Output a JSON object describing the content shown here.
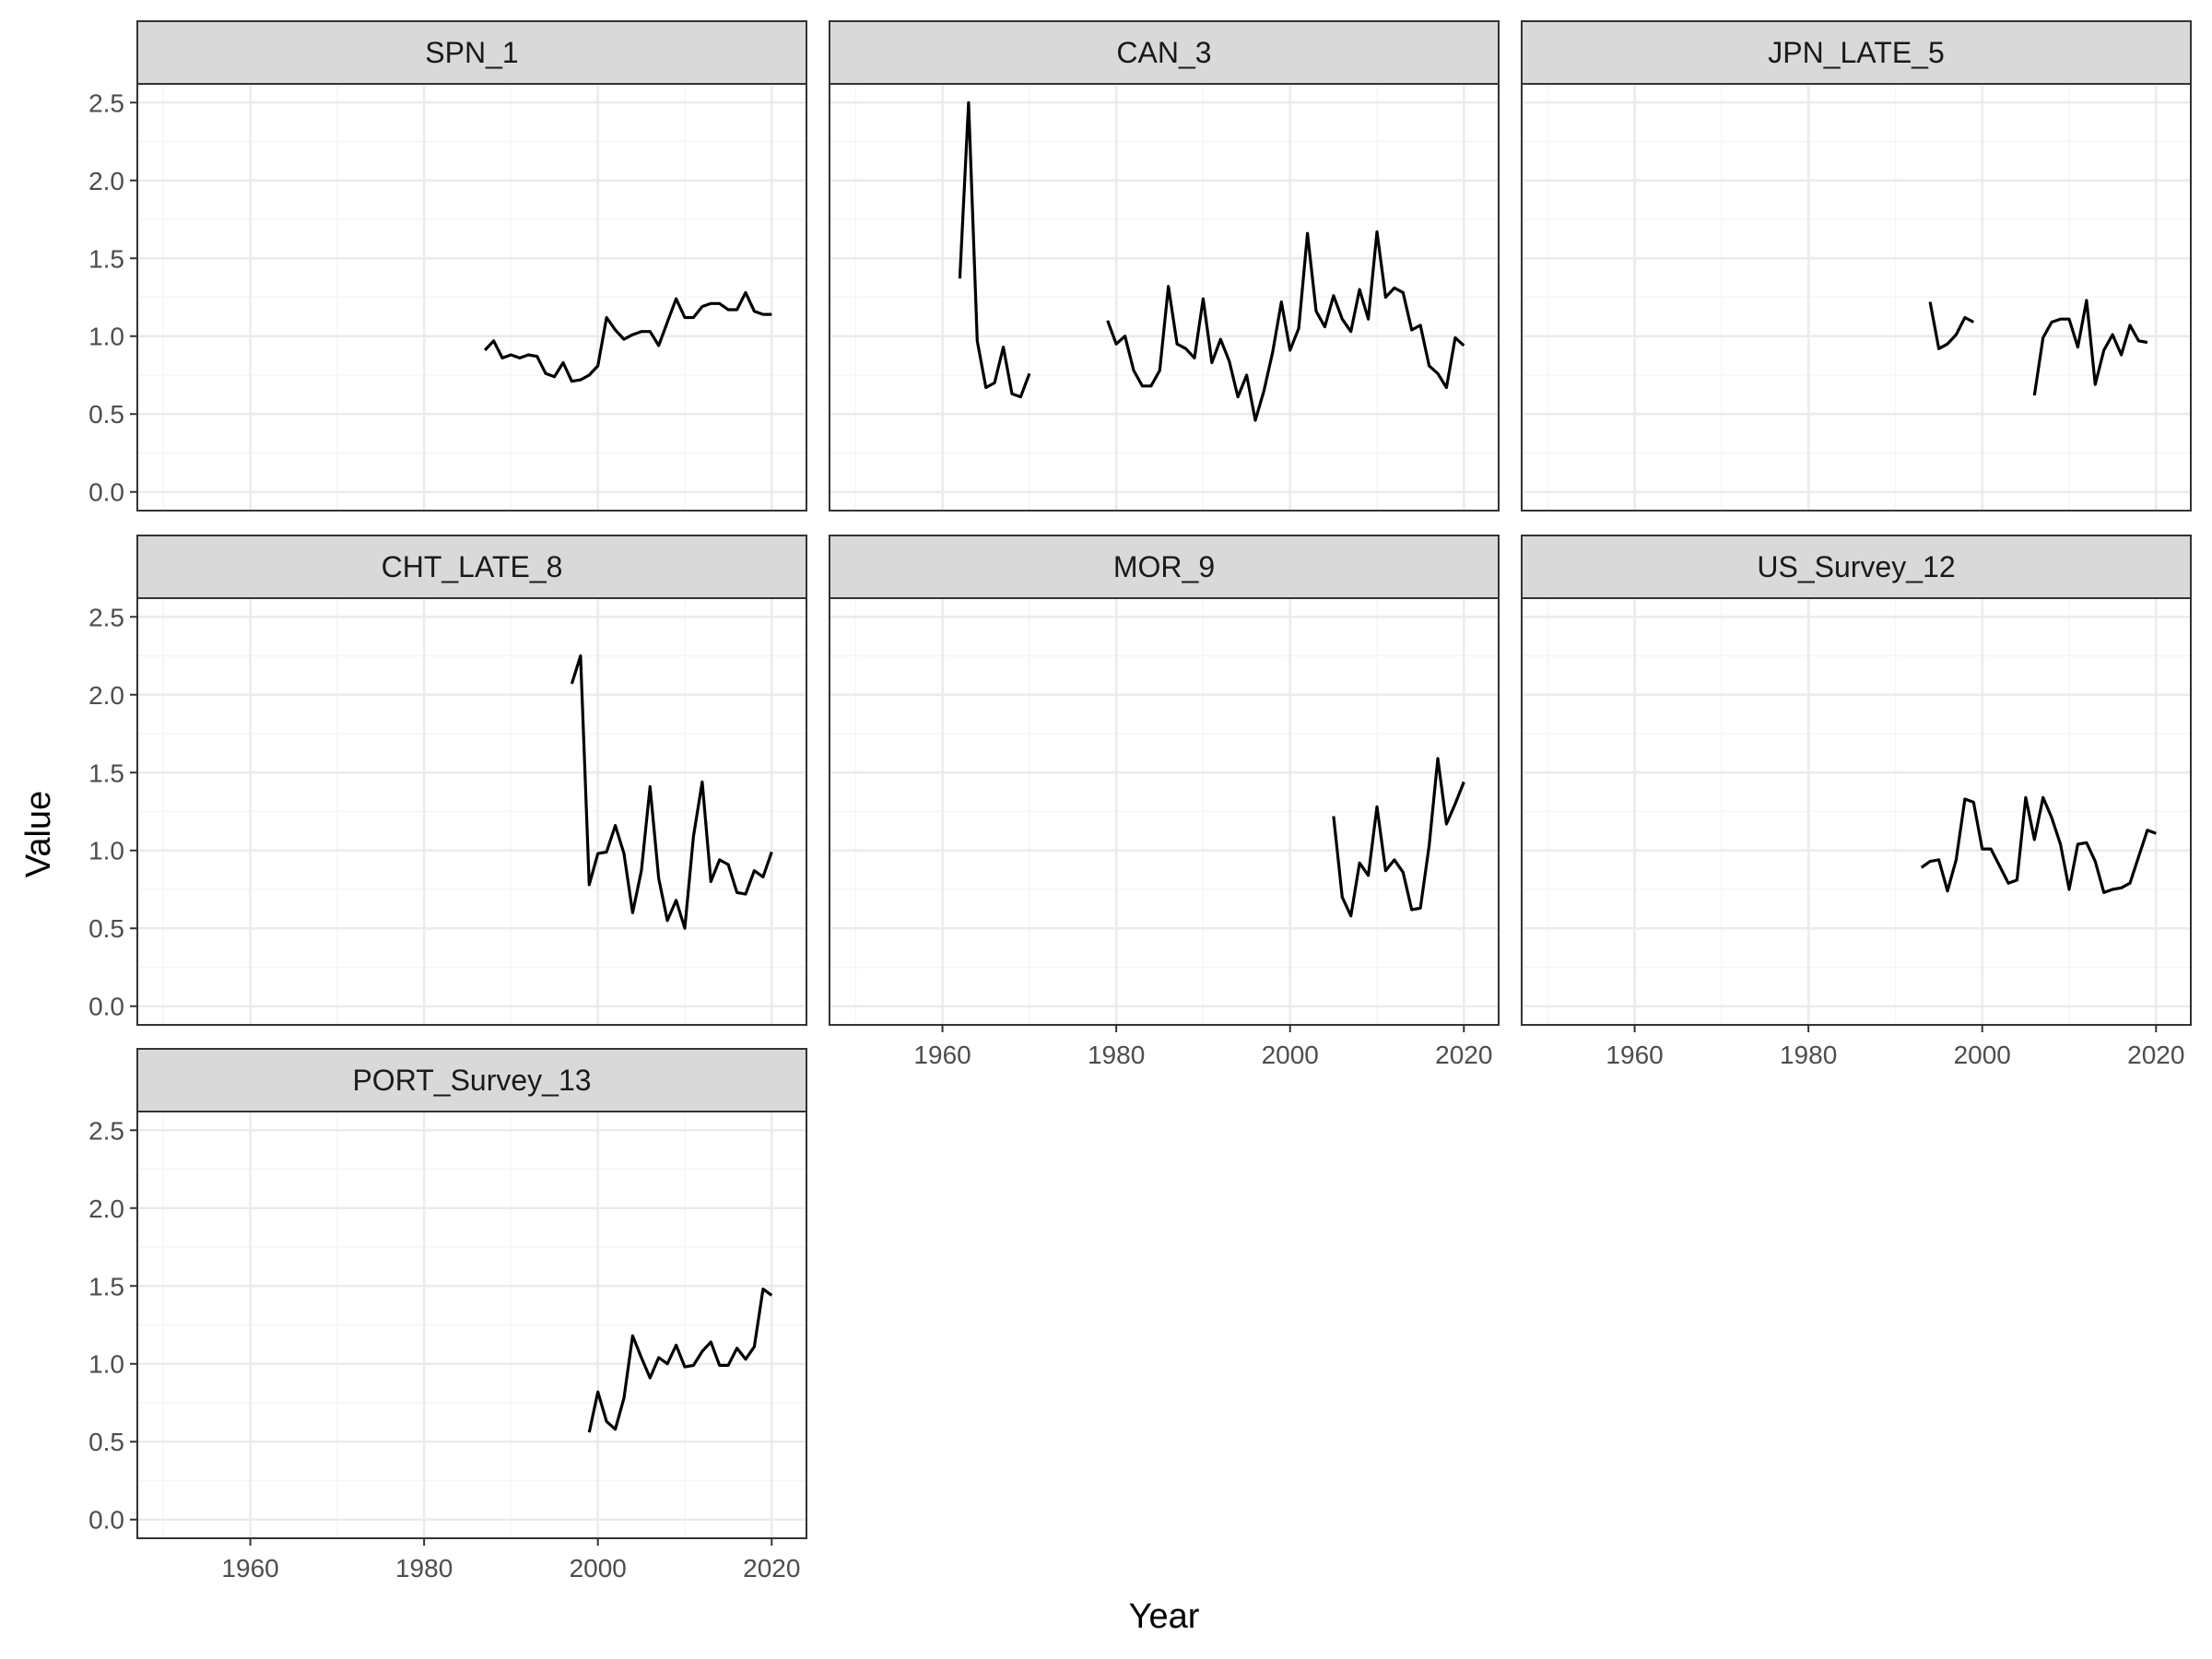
{
  "chart_data": {
    "type": "line",
    "xlabel": "Year",
    "ylabel": "Value",
    "xlim": [
      1947,
      2024
    ],
    "ylim": [
      -0.12,
      2.62
    ],
    "x_ticks": [
      1960,
      1980,
      2000,
      2020
    ],
    "y_ticks": [
      0.0,
      0.5,
      1.0,
      1.5,
      2.0,
      2.5
    ],
    "y_tick_labels": [
      "0.0",
      "0.5",
      "1.0",
      "1.5",
      "2.0",
      "2.5"
    ],
    "x_tick_labels": [
      "1960",
      "1980",
      "2000",
      "2020"
    ],
    "grid": true,
    "layout": "facet wrap, 3 columns",
    "colors": {
      "line": "#000000",
      "strip_bg": "#d9d9d9",
      "strip_border": "#333333",
      "panel_border": "#333333",
      "grid_major": "#ebebeb",
      "grid_minor": "#f5f5f5"
    },
    "panels": [
      {
        "name": "SPN_1",
        "segments": [
          [
            [
              1987,
              0.91
            ],
            [
              1988,
              0.97
            ],
            [
              1989,
              0.86
            ],
            [
              1990,
              0.88
            ],
            [
              1991,
              0.86
            ],
            [
              1992,
              0.88
            ],
            [
              1993,
              0.87
            ],
            [
              1994,
              0.76
            ],
            [
              1995,
              0.74
            ],
            [
              1996,
              0.83
            ],
            [
              1997,
              0.71
            ],
            [
              1998,
              0.72
            ],
            [
              1999,
              0.75
            ],
            [
              2000,
              0.81
            ],
            [
              2001,
              1.12
            ],
            [
              2002,
              1.04
            ],
            [
              2003,
              0.98
            ],
            [
              2004,
              1.01
            ],
            [
              2005,
              1.03
            ],
            [
              2006,
              1.03
            ],
            [
              2007,
              0.94
            ],
            [
              2008,
              1.09
            ],
            [
              2009,
              1.24
            ],
            [
              2010,
              1.12
            ],
            [
              2011,
              1.12
            ],
            [
              2012,
              1.19
            ],
            [
              2013,
              1.21
            ],
            [
              2014,
              1.21
            ],
            [
              2015,
              1.17
            ],
            [
              2016,
              1.17
            ],
            [
              2017,
              1.28
            ],
            [
              2018,
              1.16
            ],
            [
              2019,
              1.14
            ],
            [
              2020,
              1.14
            ]
          ]
        ]
      },
      {
        "name": "CAN_3",
        "segments": [
          [
            [
              1962,
              1.37
            ],
            [
              1963,
              2.5
            ],
            [
              1964,
              0.97
            ],
            [
              1965,
              0.67
            ],
            [
              1966,
              0.7
            ],
            [
              1967,
              0.93
            ],
            [
              1968,
              0.63
            ],
            [
              1969,
              0.61
            ],
            [
              1970,
              0.76
            ]
          ],
          [
            [
              1979,
              1.1
            ],
            [
              1980,
              0.95
            ],
            [
              1981,
              1.0
            ],
            [
              1982,
              0.78
            ],
            [
              1983,
              0.68
            ],
            [
              1984,
              0.68
            ],
            [
              1985,
              0.78
            ],
            [
              1986,
              1.32
            ],
            [
              1987,
              0.95
            ],
            [
              1988,
              0.92
            ],
            [
              1989,
              0.86
            ],
            [
              1990,
              1.24
            ],
            [
              1991,
              0.83
            ],
            [
              1992,
              0.98
            ],
            [
              1993,
              0.84
            ],
            [
              1994,
              0.61
            ],
            [
              1995,
              0.75
            ],
            [
              1996,
              0.46
            ],
            [
              1997,
              0.65
            ],
            [
              1998,
              0.9
            ],
            [
              1999,
              1.22
            ],
            [
              2000,
              0.91
            ],
            [
              2001,
              1.05
            ],
            [
              2002,
              1.66
            ],
            [
              2003,
              1.16
            ],
            [
              2004,
              1.06
            ],
            [
              2005,
              1.26
            ],
            [
              2006,
              1.11
            ],
            [
              2007,
              1.03
            ],
            [
              2008,
              1.3
            ],
            [
              2009,
              1.11
            ],
            [
              2010,
              1.67
            ],
            [
              2011,
              1.25
            ],
            [
              2012,
              1.31
            ],
            [
              2013,
              1.28
            ],
            [
              2014,
              1.04
            ],
            [
              2015,
              1.07
            ],
            [
              2016,
              0.81
            ],
            [
              2017,
              0.76
            ],
            [
              2018,
              0.67
            ],
            [
              2019,
              0.99
            ],
            [
              2020,
              0.94
            ]
          ]
        ]
      },
      {
        "name": "JPN_LATE_5",
        "segments": [
          [
            [
              1994,
              1.22
            ],
            [
              1995,
              0.92
            ],
            [
              1996,
              0.95
            ],
            [
              1997,
              1.01
            ],
            [
              1998,
              1.12
            ],
            [
              1999,
              1.09
            ]
          ],
          [
            [
              2006,
              0.62
            ],
            [
              2007,
              0.99
            ],
            [
              2008,
              1.09
            ],
            [
              2009,
              1.11
            ],
            [
              2010,
              1.11
            ],
            [
              2011,
              0.93
            ],
            [
              2012,
              1.23
            ],
            [
              2013,
              0.69
            ],
            [
              2014,
              0.91
            ],
            [
              2015,
              1.01
            ],
            [
              2016,
              0.88
            ],
            [
              2017,
              1.07
            ],
            [
              2018,
              0.97
            ],
            [
              2019,
              0.96
            ]
          ]
        ]
      },
      {
        "name": "CHT_LATE_8",
        "segments": [
          [
            [
              1997,
              2.07
            ],
            [
              1998,
              2.25
            ],
            [
              1999,
              0.78
            ],
            [
              2000,
              0.98
            ],
            [
              2001,
              0.99
            ],
            [
              2002,
              1.16
            ],
            [
              2003,
              0.98
            ],
            [
              2004,
              0.6
            ],
            [
              2005,
              0.87
            ],
            [
              2006,
              1.41
            ],
            [
              2007,
              0.82
            ],
            [
              2008,
              0.55
            ],
            [
              2009,
              0.68
            ],
            [
              2010,
              0.5
            ],
            [
              2011,
              1.09
            ],
            [
              2012,
              1.44
            ],
            [
              2013,
              0.8
            ],
            [
              2014,
              0.94
            ],
            [
              2015,
              0.91
            ],
            [
              2016,
              0.73
            ],
            [
              2017,
              0.72
            ],
            [
              2018,
              0.87
            ],
            [
              2019,
              0.83
            ],
            [
              2020,
              0.99
            ]
          ]
        ]
      },
      {
        "name": "MOR_9",
        "segments": [
          [
            [
              2005,
              1.22
            ],
            [
              2006,
              0.7
            ],
            [
              2007,
              0.58
            ],
            [
              2008,
              0.92
            ],
            [
              2009,
              0.84
            ],
            [
              2010,
              1.28
            ],
            [
              2011,
              0.87
            ],
            [
              2012,
              0.94
            ],
            [
              2013,
              0.86
            ],
            [
              2014,
              0.62
            ],
            [
              2015,
              0.63
            ],
            [
              2016,
              1.03
            ],
            [
              2017,
              1.59
            ],
            [
              2018,
              1.17
            ],
            [
              2019,
              1.3
            ],
            [
              2020,
              1.44
            ]
          ]
        ]
      },
      {
        "name": "US_Survey_12",
        "segments": [
          [
            [
              1993,
              0.89
            ],
            [
              1994,
              0.93
            ],
            [
              1995,
              0.94
            ],
            [
              1996,
              0.74
            ],
            [
              1997,
              0.94
            ],
            [
              1998,
              1.33
            ],
            [
              1999,
              1.31
            ],
            [
              2000,
              1.01
            ],
            [
              2001,
              1.01
            ],
            [
              2002,
              0.9
            ],
            [
              2003,
              0.79
            ],
            [
              2004,
              0.81
            ],
            [
              2005,
              1.34
            ],
            [
              2006,
              1.07
            ],
            [
              2007,
              1.34
            ],
            [
              2008,
              1.21
            ],
            [
              2009,
              1.04
            ],
            [
              2010,
              0.75
            ],
            [
              2011,
              1.04
            ],
            [
              2012,
              1.05
            ],
            [
              2013,
              0.93
            ],
            [
              2014,
              0.73
            ],
            [
              2015,
              0.75
            ],
            [
              2016,
              0.76
            ],
            [
              2017,
              0.79
            ],
            [
              2018,
              0.96
            ],
            [
              2019,
              1.13
            ],
            [
              2020,
              1.11
            ]
          ]
        ]
      },
      {
        "name": "PORT_Survey_13",
        "segments": [
          [
            [
              1999,
              0.56
            ],
            [
              2000,
              0.82
            ],
            [
              2001,
              0.63
            ],
            [
              2002,
              0.58
            ],
            [
              2003,
              0.78
            ],
            [
              2004,
              1.18
            ],
            [
              2005,
              1.04
            ],
            [
              2006,
              0.91
            ],
            [
              2007,
              1.04
            ],
            [
              2008,
              1.0
            ],
            [
              2009,
              1.12
            ],
            [
              2010,
              0.98
            ],
            [
              2011,
              0.99
            ],
            [
              2012,
              1.08
            ],
            [
              2013,
              1.14
            ],
            [
              2014,
              0.99
            ],
            [
              2015,
              0.99
            ],
            [
              2016,
              1.1
            ],
            [
              2017,
              1.03
            ],
            [
              2018,
              1.11
            ],
            [
              2019,
              1.48
            ],
            [
              2020,
              1.44
            ]
          ]
        ]
      }
    ]
  }
}
